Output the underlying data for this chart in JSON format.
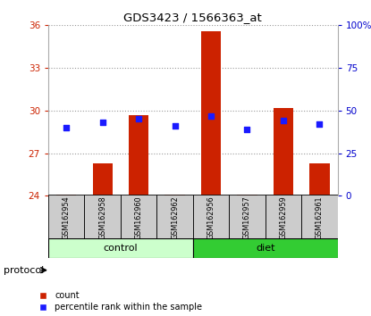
{
  "title": "GDS3423 / 1566363_at",
  "samples": [
    "GSM162954",
    "GSM162958",
    "GSM162960",
    "GSM162962",
    "GSM162956",
    "GSM162957",
    "GSM162959",
    "GSM162961"
  ],
  "groups": [
    "control",
    "control",
    "control",
    "control",
    "diet",
    "diet",
    "diet",
    "diet"
  ],
  "bar_values": [
    24.1,
    26.3,
    29.7,
    24.1,
    35.6,
    24.1,
    30.2,
    26.3
  ],
  "bar_base": 24.0,
  "percentile_ranks": [
    40.0,
    43.0,
    45.0,
    41.0,
    47.0,
    39.0,
    44.0,
    42.0
  ],
  "left_yticks": [
    24,
    27,
    30,
    33,
    36
  ],
  "right_yticks": [
    0,
    25,
    50,
    75,
    100
  ],
  "left_ylim": [
    24,
    36
  ],
  "right_ylim": [
    0,
    100
  ],
  "bar_color": "#cc2200",
  "dot_color": "#1a1aff",
  "control_color": "#ccffcc",
  "diet_color": "#33cc33",
  "left_tick_color": "#cc2200",
  "right_tick_color": "#0000cc",
  "grid_color": "#888888",
  "protocol_label": "protocol",
  "legend_bar_label": "count",
  "legend_dot_label": "percentile rank within the sample",
  "bar_width": 0.55,
  "sample_box_color": "#cccccc",
  "spine_color": "#aaaaaa"
}
